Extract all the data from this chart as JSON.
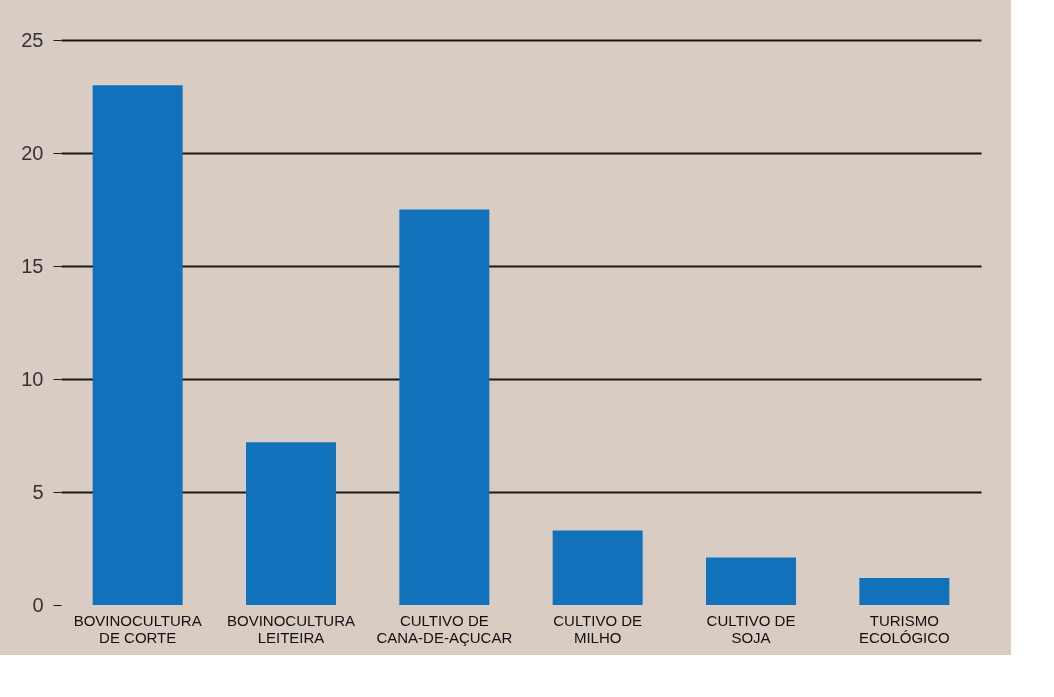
{
  "chart_data": {
    "type": "bar",
    "categories": [
      "BOVINOCULTURA DE CORTE",
      "BOVINOCULTURA LEITEIRA",
      "CULTIVO DE CANA-DE-AÇUCAR",
      "CULTIVO DE MILHO",
      "CULTIVO DE SOJA",
      "TURISMO ECOLÓGICO"
    ],
    "values": [
      23.0,
      7.2,
      17.5,
      3.3,
      2.1,
      1.2
    ],
    "color": "#1172bb",
    "ylim": [
      0,
      25
    ],
    "yticks": [
      0,
      5,
      10,
      15,
      20,
      25
    ],
    "grid": "y"
  }
}
